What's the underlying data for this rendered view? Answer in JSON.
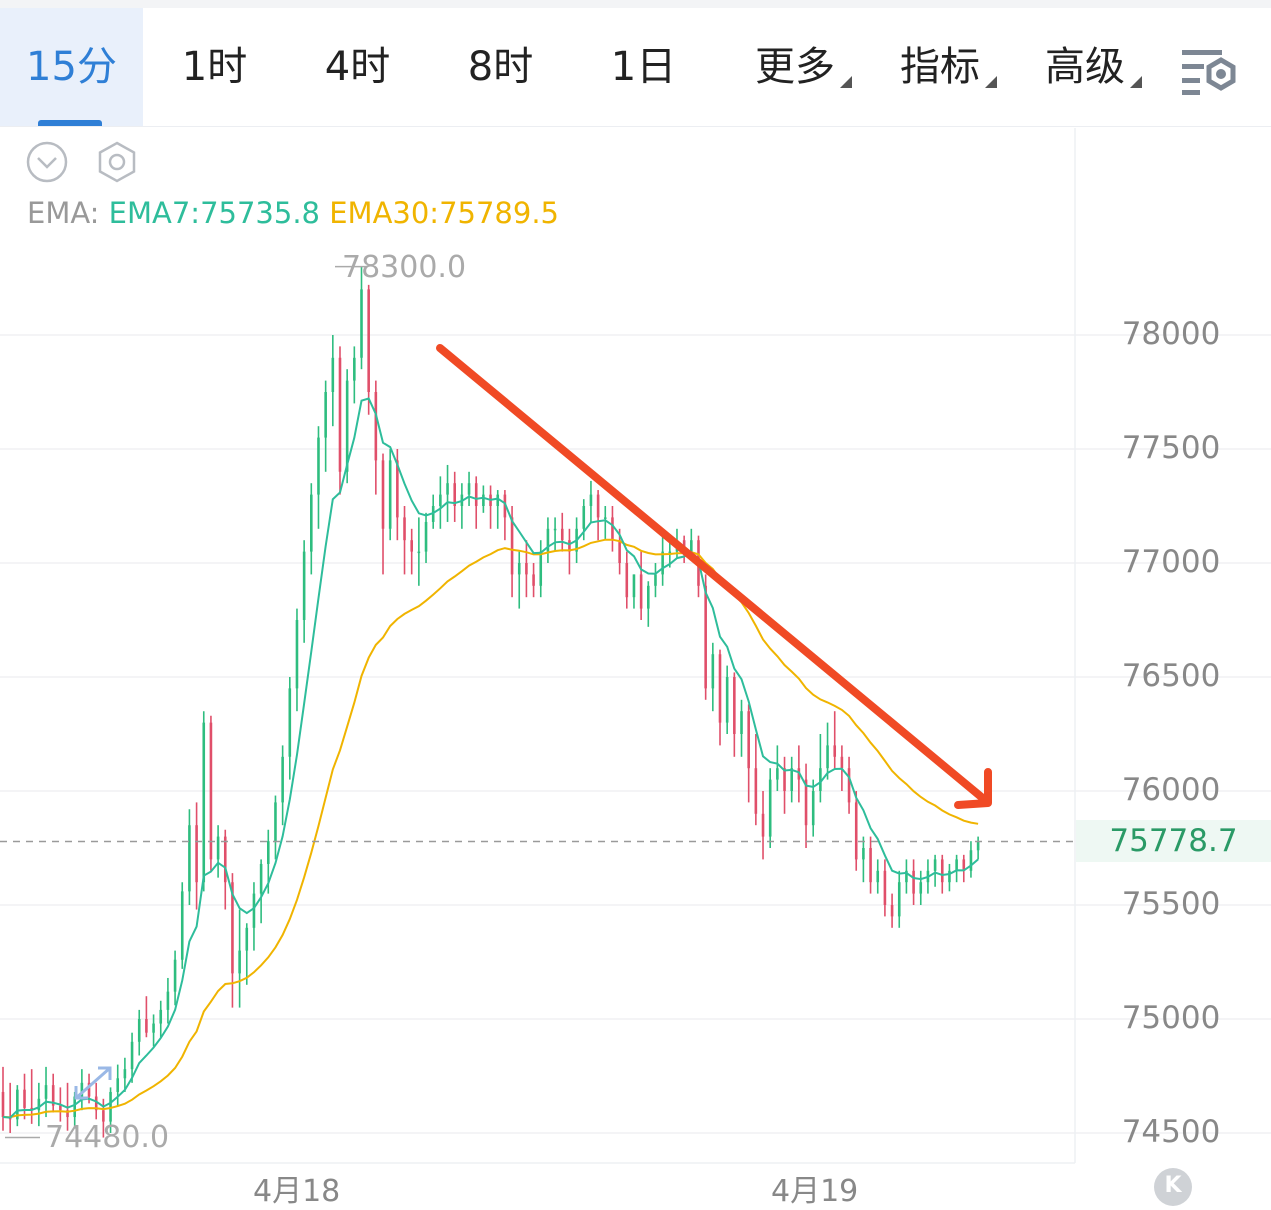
{
  "tabs": [
    {
      "label": "15分",
      "active": true
    },
    {
      "label": "1时"
    },
    {
      "label": "4时"
    },
    {
      "label": "8时"
    },
    {
      "label": "1日"
    },
    {
      "label": "更多",
      "dropdown": true
    },
    {
      "label": "指标",
      "dropdown": true
    },
    {
      "label": "高级",
      "dropdown": true
    }
  ],
  "icons": {
    "collapse": "chevron-down-circle-icon",
    "hex_settings": "hexagon-settings-icon",
    "chart_settings": "chart-settings-icon",
    "scroll_end": "scroll-to-latest-icon"
  },
  "indicator": {
    "prefix": "EMA:",
    "ema7": "EMA7:75735.8",
    "ema30": "EMA30:75789.5"
  },
  "chart_data": {
    "type": "candlestick",
    "interval": "15分",
    "ylim": [
      74400,
      78400
    ],
    "y_ticks": [
      "78000",
      "77500",
      "77000",
      "76500",
      "76000",
      "75500",
      "75000",
      "74500"
    ],
    "x_ticks": [
      "4月18",
      "4月19"
    ],
    "high_label": "78300.0",
    "low_label": "74480.0",
    "current_price": "75778.7",
    "up_color": "#2ebd7f",
    "down_color": "#e04f6a",
    "ema7_color": "#2ebd9b",
    "ema30_color": "#f0b400",
    "annotation": "red downward trend arrow",
    "candles": [
      [
        74680,
        74790,
        74510,
        74570
      ],
      [
        74570,
        74720,
        74500,
        74560
      ],
      [
        74560,
        74710,
        74530,
        74690
      ],
      [
        74690,
        74760,
        74560,
        74610
      ],
      [
        74610,
        74780,
        74540,
        74600
      ],
      [
        74600,
        74720,
        74530,
        74650
      ],
      [
        74650,
        74790,
        74570,
        74710
      ],
      [
        74710,
        74760,
        74590,
        74620
      ],
      [
        74620,
        74700,
        74550,
        74600
      ],
      [
        74600,
        74720,
        74510,
        74570
      ],
      [
        74570,
        74680,
        74520,
        74660
      ],
      [
        74660,
        74780,
        74600,
        74720
      ],
      [
        74720,
        74760,
        74630,
        74660
      ],
      [
        74660,
        74720,
        74560,
        74600
      ],
      [
        74600,
        74650,
        74480,
        74550
      ],
      [
        74550,
        74700,
        74500,
        74680
      ],
      [
        74680,
        74800,
        74620,
        74740
      ],
      [
        74740,
        74830,
        74680,
        74780
      ],
      [
        74780,
        74940,
        74720,
        74900
      ],
      [
        74900,
        75040,
        74840,
        75000
      ],
      [
        75000,
        75100,
        74920,
        74940
      ],
      [
        74940,
        75020,
        74880,
        74980
      ],
      [
        74980,
        75080,
        74920,
        75040
      ],
      [
        75040,
        75180,
        74980,
        75120
      ],
      [
        75120,
        75300,
        75060,
        75260
      ],
      [
        75260,
        75600,
        75220,
        75560
      ],
      [
        75560,
        75920,
        75500,
        75850
      ],
      [
        75850,
        75950,
        75480,
        75600
      ],
      [
        75600,
        76350,
        75560,
        76300
      ],
      [
        76300,
        76330,
        75650,
        75700
      ],
      [
        75700,
        75850,
        75620,
        75800
      ],
      [
        75800,
        75830,
        75480,
        75600
      ],
      [
        75600,
        75640,
        75050,
        75200
      ],
      [
        75200,
        75480,
        75050,
        75300
      ],
      [
        75300,
        75420,
        75150,
        75400
      ],
      [
        75400,
        75600,
        75300,
        75550
      ],
      [
        75550,
        75700,
        75420,
        75680
      ],
      [
        75680,
        75830,
        75550,
        75780
      ],
      [
        75780,
        75980,
        75700,
        75950
      ],
      [
        75950,
        76200,
        75850,
        76150
      ],
      [
        76150,
        76500,
        76050,
        76450
      ],
      [
        76450,
        76800,
        76350,
        76750
      ],
      [
        76750,
        77100,
        76650,
        77050
      ],
      [
        77050,
        77350,
        76950,
        77300
      ],
      [
        77300,
        77600,
        77150,
        77550
      ],
      [
        77550,
        77800,
        77400,
        77750
      ],
      [
        77750,
        78000,
        77600,
        77900
      ],
      [
        77900,
        77950,
        77300,
        77400
      ],
      [
        77400,
        77850,
        77350,
        77800
      ],
      [
        77800,
        77950,
        77700,
        77900
      ],
      [
        77900,
        78300,
        77850,
        78200
      ],
      [
        78200,
        78220,
        77650,
        77750
      ],
      [
        77750,
        77800,
        77300,
        77450
      ],
      [
        77450,
        77480,
        76950,
        77150
      ],
      [
        77150,
        77500,
        77100,
        77450
      ],
      [
        77450,
        77500,
        77100,
        77200
      ],
      [
        77200,
        77250,
        76950,
        77100
      ],
      [
        77100,
        77150,
        76950,
        77050
      ],
      [
        77050,
        77200,
        76900,
        77050
      ],
      [
        77050,
        77220,
        77000,
        77180
      ],
      [
        77180,
        77300,
        77150,
        77250
      ],
      [
        77250,
        77380,
        77150,
        77300
      ],
      [
        77300,
        77430,
        77180,
        77350
      ],
      [
        77350,
        77400,
        77180,
        77250
      ],
      [
        77250,
        77350,
        77150,
        77300
      ],
      [
        77300,
        77400,
        77250,
        77350
      ],
      [
        77350,
        77380,
        77150,
        77250
      ],
      [
        77250,
        77340,
        77220,
        77300
      ],
      [
        77300,
        77340,
        77150,
        77250
      ],
      [
        77250,
        77320,
        77150,
        77300
      ],
      [
        77300,
        77320,
        77100,
        77200
      ],
      [
        77200,
        77250,
        76850,
        76950
      ],
      [
        76950,
        77050,
        76800,
        77000
      ],
      [
        77000,
        77100,
        76850,
        76950
      ],
      [
        76950,
        77000,
        76850,
        76900
      ],
      [
        76900,
        77100,
        76850,
        77050
      ],
      [
        77050,
        77200,
        77000,
        77150
      ],
      [
        77150,
        77200,
        77050,
        77150
      ],
      [
        77150,
        77220,
        77050,
        77100
      ],
      [
        77100,
        77150,
        76950,
        77050
      ],
      [
        77050,
        77200,
        77000,
        77150
      ],
      [
        77150,
        77280,
        77100,
        77250
      ],
      [
        77250,
        77360,
        77180,
        77300
      ],
      [
        77300,
        77320,
        77100,
        77200
      ],
      [
        77200,
        77250,
        77100,
        77200
      ],
      [
        77200,
        77250,
        77050,
        77100
      ],
      [
        77100,
        77150,
        76950,
        77000
      ],
      [
        77000,
        77050,
        76800,
        76850
      ],
      [
        76850,
        76950,
        76800,
        76950
      ],
      [
        76950,
        77050,
        76750,
        76800
      ],
      [
        76800,
        76920,
        76720,
        76900
      ],
      [
        76900,
        77000,
        76850,
        76950
      ],
      [
        76950,
        77150,
        76900,
        77050
      ],
      [
        77050,
        77100,
        76980,
        77050
      ],
      [
        77050,
        77150,
        77020,
        77100
      ],
      [
        77100,
        77120,
        77000,
        77050
      ],
      [
        77050,
        77150,
        77020,
        77100
      ],
      [
        77100,
        77120,
        76850,
        76900
      ],
      [
        76900,
        76950,
        76400,
        76450
      ],
      [
        76450,
        76650,
        76350,
        76600
      ],
      [
        76600,
        76620,
        76200,
        76300
      ],
      [
        76300,
        76550,
        76250,
        76500
      ],
      [
        76500,
        76520,
        76150,
        76250
      ],
      [
        76250,
        76400,
        76150,
        76350
      ],
      [
        76350,
        76380,
        75950,
        76100
      ],
      [
        76100,
        76250,
        75850,
        75900
      ],
      [
        75900,
        76000,
        75700,
        75800
      ],
      [
        75800,
        76100,
        75750,
        76050
      ],
      [
        76050,
        76200,
        76000,
        76100
      ],
      [
        76100,
        76150,
        75900,
        76000
      ],
      [
        76000,
        76150,
        75950,
        76100
      ],
      [
        76100,
        76200,
        75950,
        76050
      ],
      [
        76050,
        76120,
        75750,
        75850
      ],
      [
        75850,
        76050,
        75800,
        76000
      ],
      [
        76000,
        76250,
        75950,
        76100
      ],
      [
        76100,
        76300,
        76050,
        76200
      ],
      [
        76200,
        76350,
        76100,
        76150
      ],
      [
        76150,
        76200,
        76000,
        76100
      ],
      [
        76100,
        76150,
        75900,
        75950
      ],
      [
        75950,
        76000,
        75650,
        75700
      ],
      [
        75700,
        75800,
        75600,
        75750
      ],
      [
        75750,
        75800,
        75550,
        75600
      ],
      [
        75600,
        75700,
        75550,
        75650
      ],
      [
        75650,
        75700,
        75450,
        75500
      ],
      [
        75500,
        75550,
        75400,
        75450
      ],
      [
        75450,
        75650,
        75400,
        75600
      ],
      [
        75600,
        75700,
        75550,
        75650
      ],
      [
        75650,
        75700,
        75500,
        75550
      ],
      [
        75550,
        75650,
        75500,
        75600
      ],
      [
        75600,
        75700,
        75550,
        75650
      ],
      [
        75650,
        75720,
        75580,
        75700
      ],
      [
        75700,
        75720,
        75550,
        75600
      ],
      [
        75600,
        75680,
        75560,
        75650
      ],
      [
        75650,
        75720,
        75600,
        75700
      ],
      [
        75700,
        75720,
        75600,
        75650
      ],
      [
        75650,
        75780,
        75620,
        75740
      ],
      [
        75740,
        75800,
        75700,
        75779
      ]
    ]
  }
}
